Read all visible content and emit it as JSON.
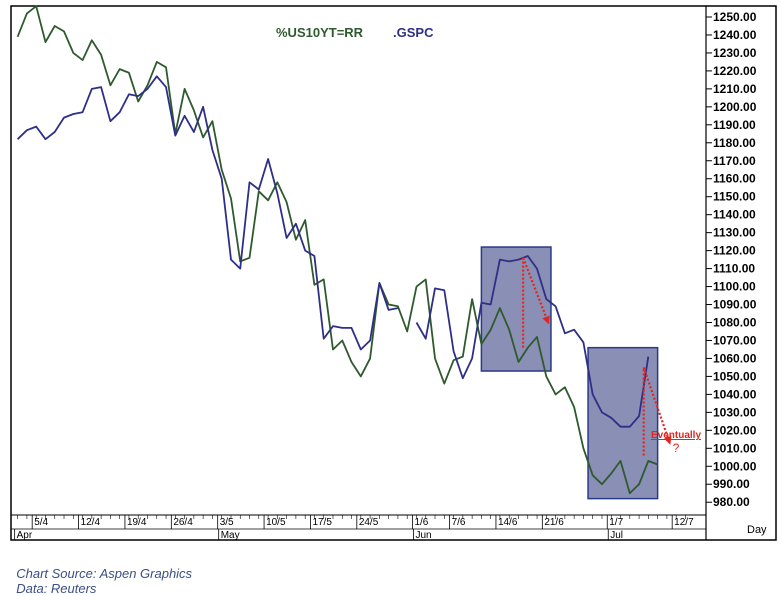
{
  "source_text": "Chart Source: Aspen Graphics",
  "data_text": "Data: Reuters",
  "colors": {
    "series_green": "#2e5a2e",
    "series_blue": "#2e2f86",
    "box_fill": "#8a8fb5",
    "box_stroke": "#2a3a8a",
    "arrow": "#e0261f",
    "annotation": "#e0261f",
    "frame": "#000000"
  },
  "chart_data": {
    "type": "line",
    "legend": [
      "%US10YT=RR",
      ".GSPC"
    ],
    "xlabel": "Day",
    "x_axis_unit": "trading days (index 0 = 1 Apr)",
    "y_ticks": [
      980,
      990,
      1000,
      1010,
      1020,
      1030,
      1040,
      1050,
      1060,
      1070,
      1080,
      1090,
      1100,
      1110,
      1120,
      1130,
      1140,
      1150,
      1160,
      1170,
      1180,
      1190,
      1200,
      1210,
      1220,
      1230,
      1240,
      1250
    ],
    "ylim": [
      974,
      1255
    ],
    "xlim": [
      -0.5,
      74
    ],
    "date_ticks": [
      {
        "label": "5/4",
        "x": 2
      },
      {
        "label": "12/4",
        "x": 7
      },
      {
        "label": "19/4",
        "x": 12
      },
      {
        "label": "26/4",
        "x": 17
      },
      {
        "label": "3/5",
        "x": 22
      },
      {
        "label": "10/5",
        "x": 27
      },
      {
        "label": "17/5",
        "x": 32
      },
      {
        "label": "24/5",
        "x": 37
      },
      {
        "label": "1/6",
        "x": 43
      },
      {
        "label": "7/6",
        "x": 47
      },
      {
        "label": "14/6",
        "x": 52
      },
      {
        "label": "21/6",
        "x": 57
      },
      {
        "label": "1/7",
        "x": 64
      },
      {
        "label": "12/7",
        "x": 71
      }
    ],
    "month_labels": [
      {
        "label": "Apr",
        "x": 0
      },
      {
        "label": "May",
        "x": 22
      },
      {
        "label": "Jun",
        "x": 43
      },
      {
        "label": "Jul",
        "x": 64
      }
    ],
    "series": [
      {
        "name": "%US10YT=RR",
        "color": "#2e5a2e",
        "x": [
          0,
          1,
          2,
          3,
          4,
          5,
          6,
          7,
          8,
          9,
          10,
          11,
          12,
          13,
          14,
          15,
          16,
          17,
          18,
          19,
          20,
          21,
          22,
          23,
          24,
          25,
          26,
          27,
          28,
          29,
          30,
          31,
          32,
          33,
          34,
          35,
          36,
          37,
          38,
          39,
          40,
          41,
          42,
          43,
          44,
          45,
          46,
          47,
          48,
          49,
          50,
          51,
          52,
          53,
          54,
          55,
          56,
          57,
          58,
          59,
          60,
          61,
          62,
          63,
          64,
          65,
          66,
          67,
          68
        ],
        "values": [
          1239,
          1252,
          1256,
          1236,
          1245,
          1242,
          1230,
          1226,
          1237,
          1229,
          1212,
          1221,
          1219,
          1203,
          1212,
          1225,
          1222,
          1185,
          1210,
          1198,
          1183,
          1192,
          1165,
          1149,
          1114,
          1116,
          1153,
          1148,
          1158,
          1147,
          1126,
          1137,
          1101,
          1104,
          1065,
          1070,
          1058,
          1050,
          1060,
          1102,
          1090,
          1089,
          1075,
          1100,
          1104,
          1060,
          1046,
          1059,
          1061,
          1093,
          1068,
          1076,
          1088,
          1076,
          1058,
          1066,
          1072,
          1050,
          1040,
          1044,
          1033,
          1010,
          995,
          990,
          996,
          1003,
          985,
          990,
          1003
        ],
        "values_tail_note": "last point ~1001"
      },
      {
        "name": ".GSPC",
        "color": "#2e2f86",
        "x": [
          0,
          1,
          2,
          3,
          4,
          5,
          6,
          7,
          8,
          9,
          10,
          11,
          12,
          13,
          14,
          15,
          16,
          17,
          18,
          19,
          20,
          21,
          22,
          23,
          24,
          25,
          26,
          27,
          28,
          29,
          30,
          31,
          32,
          33,
          34,
          35,
          36,
          37,
          38,
          39,
          40,
          41,
          42,
          43,
          44,
          45,
          46,
          47,
          48,
          49,
          50,
          51,
          52,
          53,
          54,
          55,
          56,
          57,
          58,
          59,
          60,
          61,
          62,
          63,
          64,
          65,
          66,
          67
        ],
        "values": [
          1182,
          1187,
          1189,
          1182,
          1186,
          1194,
          1196,
          1197,
          1210,
          1211,
          1192,
          1197,
          1207,
          1206,
          1210,
          1217,
          1211,
          1184,
          1195,
          1186,
          1200,
          1176,
          1160,
          1115,
          1110,
          1158,
          1154,
          1171,
          1152,
          1127,
          1135,
          1120,
          1117,
          1071,
          1078,
          1077,
          1077,
          1065,
          1070,
          1102,
          1087,
          1088,
          null,
          1080,
          1071,
          1099,
          1098,
          1064,
          1049,
          1060,
          1091,
          1090,
          1115,
          1114,
          1115,
          1117,
          1110,
          1093,
          1089,
          1074,
          1076,
          1069,
          1040,
          1030,
          1027,
          1022,
          1022,
          1028
        ],
        "values_tail_note": "ends with spike to 1061"
      }
    ],
    "annotations": [
      {
        "type": "box",
        "label": "",
        "x": [
          50.0,
          57.5
        ],
        "y": [
          1053,
          1122
        ]
      },
      {
        "type": "box",
        "label": "",
        "x": [
          61.5,
          69.0
        ],
        "y": [
          982,
          1066
        ]
      },
      {
        "type": "arrow",
        "label": "",
        "from": [
          54.5,
          1066
        ],
        "to": [
          54.5,
          1116
        ]
      },
      {
        "type": "arrow",
        "label": "",
        "from": [
          54.5,
          1116
        ],
        "to": [
          57.2,
          1080
        ]
      },
      {
        "type": "arrow",
        "label": "",
        "from": [
          67.5,
          1006
        ],
        "to": [
          67.5,
          1055
        ]
      },
      {
        "type": "arrow",
        "label": "",
        "from": [
          67.5,
          1055
        ],
        "to": [
          70.3,
          1013
        ]
      }
    ],
    "annotation_text": "Eventually",
    "annotation_mark": "?"
  }
}
